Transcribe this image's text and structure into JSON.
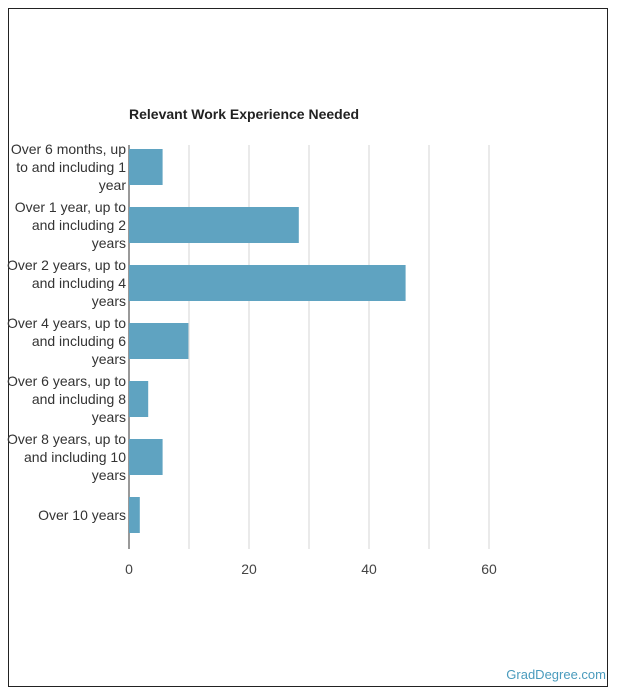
{
  "chart_data": {
    "type": "bar",
    "orientation": "horizontal",
    "title": "Relevant Work Experience Needed",
    "categories": [
      [
        "Over 6 months, up",
        "to and including 1",
        "year"
      ],
      [
        "Over 1 year, up to",
        "and including 2",
        "years"
      ],
      [
        "Over 2 years, up to",
        "and including 4",
        "years"
      ],
      [
        "Over 4 years, up to",
        "and including 6",
        "years"
      ],
      [
        "Over 6 years, up to",
        "and including 8",
        "years"
      ],
      [
        "Over 8 years, up to",
        "and including 10",
        "years"
      ],
      [
        "Over 10 years"
      ]
    ],
    "values": [
      5.6,
      28.3,
      46.1,
      9.9,
      3.2,
      5.6,
      1.8
    ],
    "xlim": [
      0,
      60
    ],
    "xticks": [
      0,
      20,
      40,
      60
    ],
    "grid": true,
    "bar_color": "#5fa3c1",
    "grid_color": "#d6d6d6"
  },
  "watermark": "GradDegree.com"
}
